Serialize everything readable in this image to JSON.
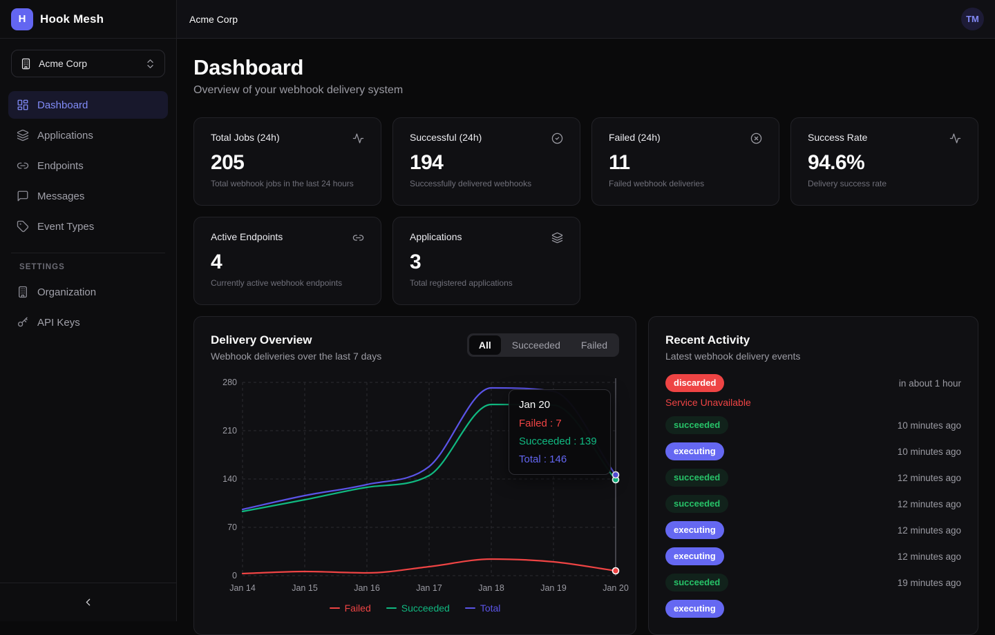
{
  "brand": {
    "name": "Hook Mesh",
    "logo_letter": "H"
  },
  "topbar": {
    "org_name": "Acme Corp",
    "avatar_initials": "TM"
  },
  "sidebar": {
    "org_selector": {
      "label": "Acme Corp",
      "icon": "building-icon",
      "chevron_icon": "chevrons-up-down-icon"
    },
    "nav": [
      {
        "label": "Dashboard",
        "icon": "dashboard-icon",
        "active": true
      },
      {
        "label": "Applications",
        "icon": "layers-icon",
        "active": false
      },
      {
        "label": "Endpoints",
        "icon": "link-icon",
        "active": false
      },
      {
        "label": "Messages",
        "icon": "message-icon",
        "active": false
      },
      {
        "label": "Event Types",
        "icon": "tag-icon",
        "active": false
      }
    ],
    "settings_heading": "SETTINGS",
    "settings_nav": [
      {
        "label": "Organization",
        "icon": "building-icon"
      },
      {
        "label": "API Keys",
        "icon": "key-icon"
      }
    ],
    "collapse_icon": "chevron-left-icon"
  },
  "page": {
    "title": "Dashboard",
    "subtitle": "Overview of your webhook delivery system"
  },
  "stats": [
    {
      "label": "Total Jobs (24h)",
      "value": "205",
      "description": "Total webhook jobs in the last 24 hours",
      "icon": "activity-icon"
    },
    {
      "label": "Successful (24h)",
      "value": "194",
      "description": "Successfully delivered webhooks",
      "icon": "check-circle-icon"
    },
    {
      "label": "Failed (24h)",
      "value": "11",
      "description": "Failed webhook deliveries",
      "icon": "x-circle-icon"
    },
    {
      "label": "Success Rate",
      "value": "94.6%",
      "description": "Delivery success rate",
      "icon": "activity-icon"
    },
    {
      "label": "Active Endpoints",
      "value": "4",
      "description": "Currently active webhook endpoints",
      "icon": "link-icon"
    },
    {
      "label": "Applications",
      "value": "3",
      "description": "Total registered applications",
      "icon": "layers-icon"
    }
  ],
  "delivery_overview": {
    "title": "Delivery Overview",
    "subtitle": "Webhook deliveries over the last 7 days",
    "tabs": [
      {
        "label": "All",
        "active": true
      },
      {
        "label": "Succeeded",
        "active": false
      },
      {
        "label": "Failed",
        "active": false
      }
    ]
  },
  "chart_data": {
    "type": "line",
    "x": [
      "Jan 14",
      "Jan 15",
      "Jan 16",
      "Jan 17",
      "Jan 18",
      "Jan 19",
      "Jan 20"
    ],
    "series": [
      {
        "name": "Failed",
        "color": "#ef4444",
        "values": [
          3,
          6,
          4,
          13,
          24,
          20,
          7
        ]
      },
      {
        "name": "Succeeded",
        "color": "#10b981",
        "values": [
          93,
          110,
          128,
          145,
          248,
          247,
          139
        ]
      },
      {
        "name": "Total",
        "color": "#5b54e8",
        "values": [
          96,
          116,
          132,
          158,
          272,
          267,
          146
        ]
      }
    ],
    "ylim": [
      0,
      280
    ],
    "yticks": [
      0,
      70,
      140,
      210,
      280
    ],
    "grid": true,
    "legend_position": "bottom",
    "highlight_x": "Jan 20",
    "tooltip": {
      "title": "Jan 20",
      "rows": [
        {
          "label": "Failed",
          "value": "7",
          "color": "#ef4444"
        },
        {
          "label": "Succeeded",
          "value": "139",
          "color": "#10b981"
        },
        {
          "label": "Total",
          "value": "146",
          "color": "#6366f1"
        }
      ]
    }
  },
  "activity": {
    "title": "Recent Activity",
    "subtitle": "Latest webhook delivery events",
    "events": [
      {
        "status": "discarded",
        "time": "in about 1 hour",
        "error": "Service Unavailable"
      },
      {
        "status": "succeeded",
        "time": "10 minutes ago"
      },
      {
        "status": "executing",
        "time": "10 minutes ago"
      },
      {
        "status": "succeeded",
        "time": "12 minutes ago"
      },
      {
        "status": "succeeded",
        "time": "12 minutes ago"
      },
      {
        "status": "executing",
        "time": "12 minutes ago"
      },
      {
        "status": "executing",
        "time": "12 minutes ago"
      },
      {
        "status": "succeeded",
        "time": "19 minutes ago"
      },
      {
        "status": "executing",
        "time": ""
      }
    ]
  },
  "colors": {
    "accent": "#6366f1",
    "success": "#22c55e",
    "danger": "#ef4444"
  }
}
